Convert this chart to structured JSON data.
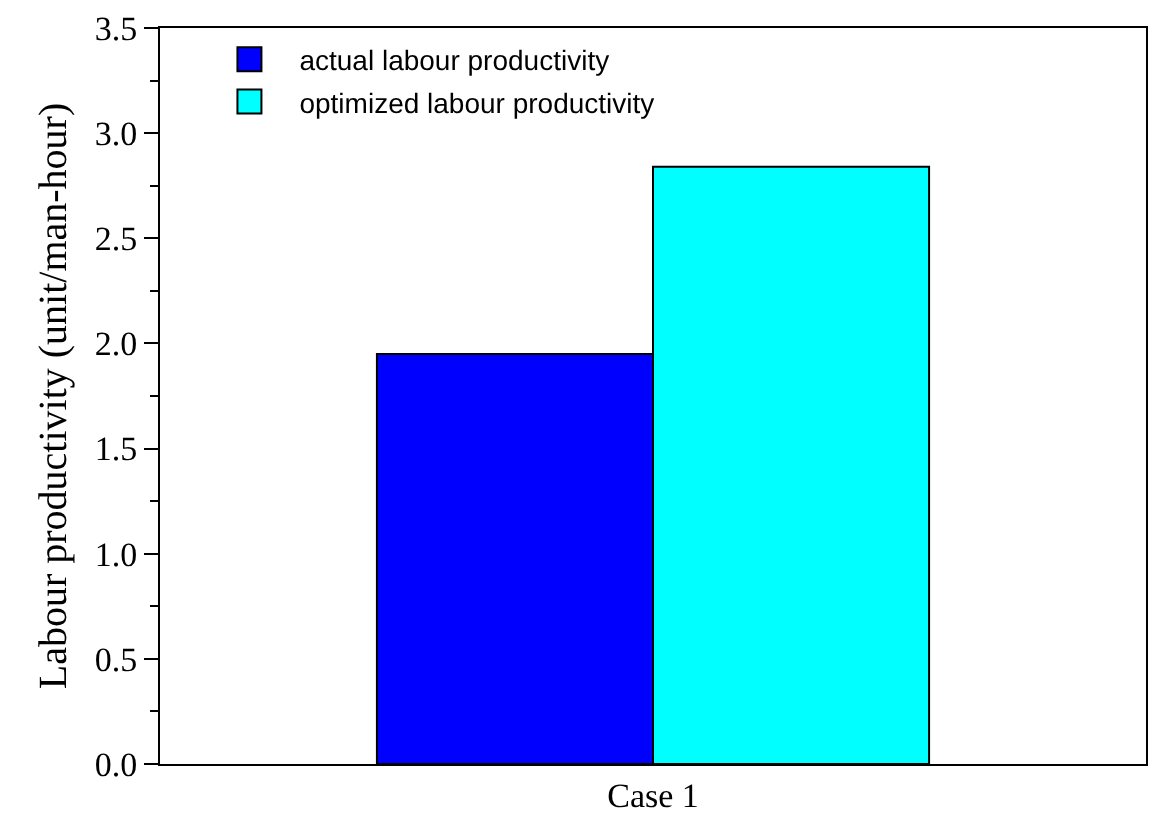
{
  "chart_data": {
    "type": "bar",
    "ylabel": "Labour productivity (unit/man-hour)",
    "categories": [
      "Case 1"
    ],
    "series": [
      {
        "name": "actual labour productivity",
        "color": "#0000ff",
        "values": [
          1.95
        ]
      },
      {
        "name": "optimized labour productivity",
        "color": "#00ffff",
        "values": [
          2.84
        ]
      }
    ],
    "ylim": [
      0,
      3.5
    ],
    "yticks": [
      {
        "value": 0,
        "label": "0.0"
      },
      {
        "value": 0.5,
        "label": "0.5"
      },
      {
        "value": 1,
        "label": "1.0"
      },
      {
        "value": 1.5,
        "label": "1.5"
      },
      {
        "value": 2,
        "label": "2.0"
      },
      {
        "value": 2.5,
        "label": "2.5"
      },
      {
        "value": 3,
        "label": "3.0"
      },
      {
        "value": 3.5,
        "label": "3.5"
      }
    ],
    "legend": "top left"
  }
}
